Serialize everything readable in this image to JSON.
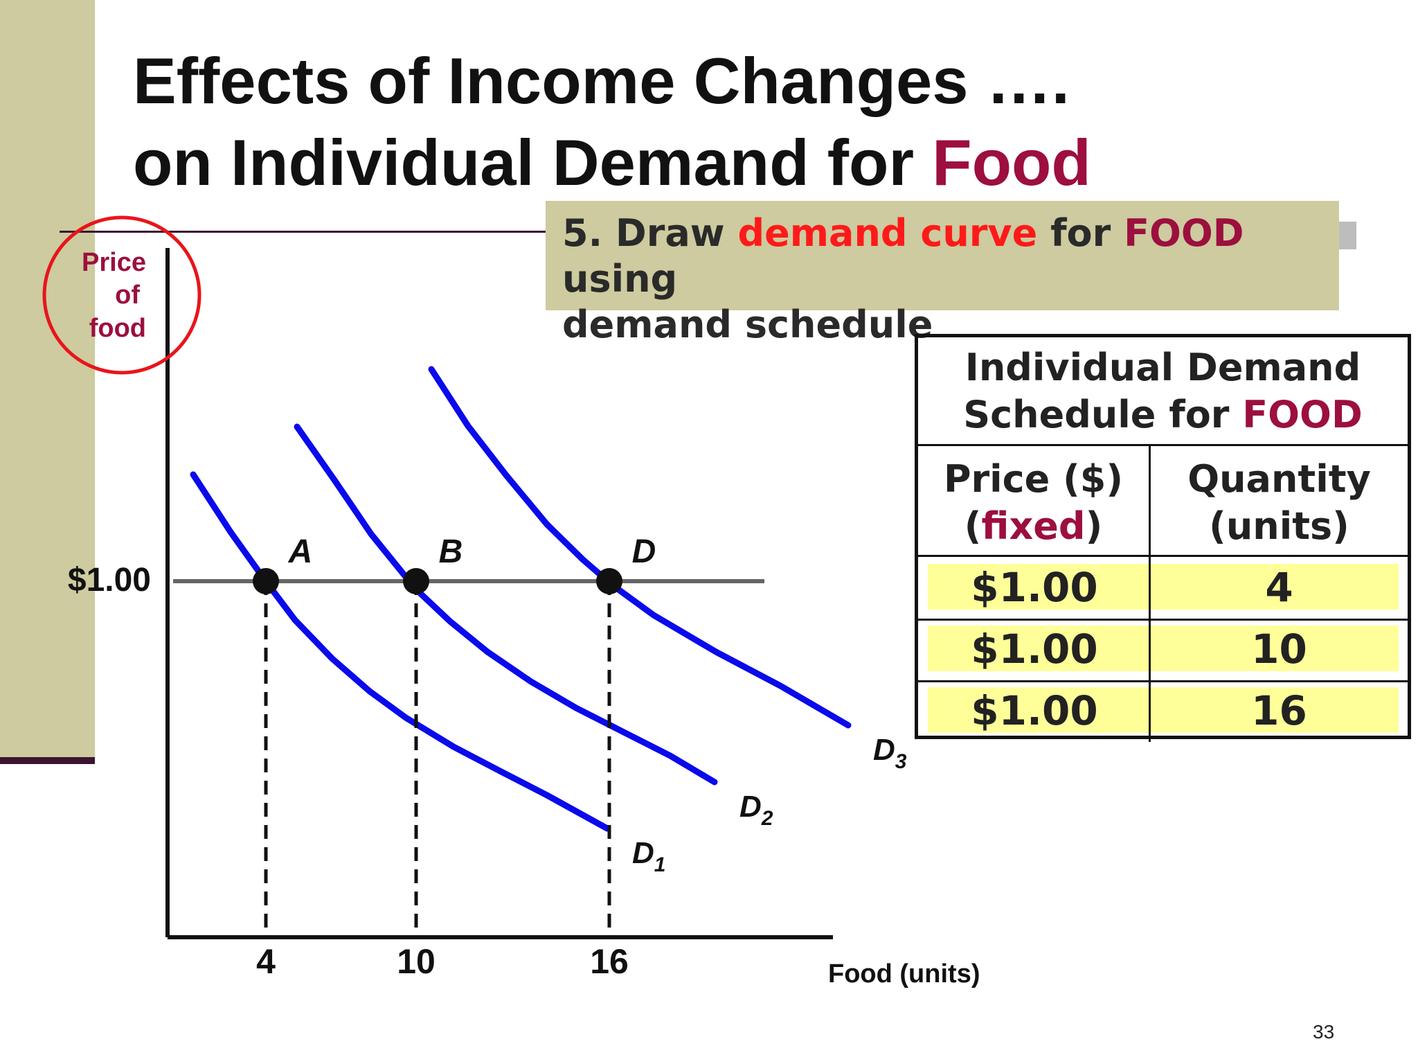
{
  "slide": {
    "title_line1": "Effects of Income Changes ….",
    "title_line2_prefix": "on Individual Demand for ",
    "title_line2_accent": "Food",
    "page_number": "33",
    "colors": {
      "accent": "#9c0f3e",
      "highlight_red": "#ff1a1a",
      "curve": "#0a0aeb",
      "panel": "#cdcb9f",
      "row_highlight": "#ffff99"
    }
  },
  "note": {
    "prefix": "5. Draw ",
    "red": "demand curve",
    "middle": " for ",
    "maroon": "FOOD",
    "suffix_line1": " using",
    "line2": "demand schedule"
  },
  "chart_data": {
    "type": "line",
    "ylabel_lines": [
      "Price",
      "of",
      "food"
    ],
    "xlabel": "Food (units)",
    "price_line": {
      "value": 1.0,
      "label": "$1.00"
    },
    "x_ticks": [
      4,
      10,
      16
    ],
    "x_tick_labels": [
      "4",
      "10",
      "16"
    ],
    "points": [
      {
        "label": "A",
        "x": 4,
        "y": 1.0
      },
      {
        "label": "B",
        "x": 10,
        "y": 1.0
      },
      {
        "label": "D",
        "x": 16,
        "y": 1.0
      }
    ],
    "series": [
      {
        "name": "D",
        "subscript": "1"
      },
      {
        "name": "D",
        "subscript": "2"
      },
      {
        "name": "D",
        "subscript": "3"
      }
    ],
    "grid": false,
    "annotation": "ylabel circled in red"
  },
  "table": {
    "caption_line1": "Individual Demand",
    "caption_line2_prefix": "Schedule for ",
    "caption_line2_accent": "FOOD",
    "col1_line1": "Price ($)",
    "col1_line2_open": "(",
    "col1_line2_accent": "fixed",
    "col1_line2_close": ")",
    "col2_line1": "Quantity",
    "col2_line2": "(units)",
    "rows": [
      {
        "price": "$1.00",
        "quantity": "4"
      },
      {
        "price": "$1.00",
        "quantity": "10"
      },
      {
        "price": "$1.00",
        "quantity": "16"
      }
    ]
  }
}
